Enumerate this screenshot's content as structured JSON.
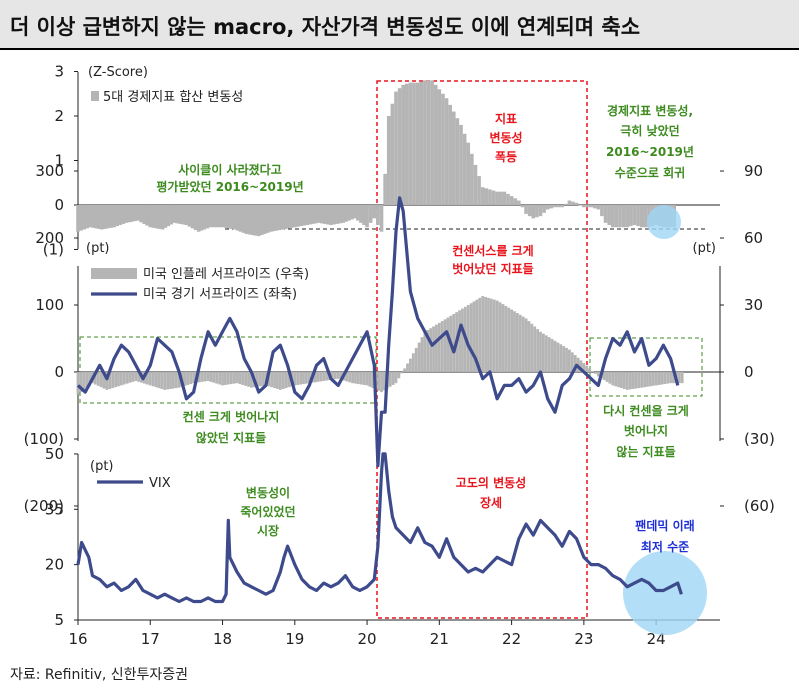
{
  "title": "더 이상 급변하지 않는 macro, 자산가격 변동성도 이에 연계되며 축소",
  "source": "자료: Refinitiv, 신한투자증권",
  "colors": {
    "navy": "#3d4a8c",
    "gray": "#b5b5b5",
    "red": "#e8141c",
    "green": "#3d8b1f",
    "blue": "#1f2fd6",
    "highlight": "#9fd6f5"
  },
  "chart_data": [
    {
      "type": "bar",
      "name": "macro-index",
      "ylabel": "(Z-Score)",
      "ylim": [
        -1,
        3
      ],
      "yticks": [
        "3",
        "2",
        "1",
        "0",
        "(1)"
      ],
      "legend": "5대 경제지표 합산 변동성",
      "annotations": [
        "사이클이 사라졌다고",
        "평가받았던 2016~2019년",
        "지표",
        "변동성",
        "폭등",
        "경제지표 변동성,",
        "극히 낮았던",
        "2016~2019년",
        "수준으로 회귀"
      ],
      "series": [
        {
          "name": "5대 경제지표 합산 변동성",
          "x": [
            2016.0,
            2016.17,
            2016.33,
            2016.5,
            2016.67,
            2016.83,
            2017.0,
            2017.17,
            2017.33,
            2017.5,
            2017.67,
            2017.83,
            2018.0,
            2018.17,
            2018.33,
            2018.5,
            2018.67,
            2018.83,
            2019.0,
            2019.17,
            2019.33,
            2019.5,
            2019.67,
            2019.83,
            2020.0,
            2020.1,
            2020.2,
            2020.3,
            2020.4,
            2020.5,
            2020.6,
            2020.7,
            2020.8,
            2020.9,
            2021.0,
            2021.1,
            2021.2,
            2021.3,
            2021.4,
            2021.5,
            2021.6,
            2021.7,
            2021.8,
            2021.9,
            2022.0,
            2022.1,
            2022.2,
            2022.3,
            2022.4,
            2022.5,
            2022.6,
            2022.7,
            2022.8,
            2022.9,
            2023.0,
            2023.1,
            2023.2,
            2023.3,
            2023.4,
            2023.5,
            2023.6,
            2023.7,
            2023.8,
            2023.9,
            2024.0,
            2024.1,
            2024.2
          ],
          "y": [
            -0.6,
            -0.5,
            -0.55,
            -0.5,
            -0.4,
            -0.35,
            -0.5,
            -0.55,
            -0.4,
            -0.45,
            -0.6,
            -0.5,
            -0.5,
            -0.55,
            -0.65,
            -0.7,
            -0.6,
            -0.55,
            -0.5,
            -0.45,
            -0.4,
            -0.45,
            -0.4,
            -0.3,
            -0.5,
            -0.3,
            -0.6,
            2.0,
            2.55,
            2.7,
            2.75,
            2.75,
            2.8,
            2.8,
            2.6,
            2.4,
            2.1,
            1.8,
            1.4,
            0.9,
            0.4,
            0.35,
            0.3,
            0.3,
            0.2,
            0.1,
            -0.2,
            -0.3,
            -0.25,
            -0.1,
            -0.05,
            -0.05,
            0.1,
            0.05,
            -0.05,
            -0.05,
            -0.1,
            -0.4,
            -0.5,
            -0.5,
            -0.5,
            -0.45,
            -0.5,
            -0.5,
            -0.45,
            -0.5,
            -0.5
          ]
        }
      ]
    },
    {
      "type": "line",
      "name": "surprise-index",
      "ylabel_left": "(pt)",
      "ylabel_right": "(pt)",
      "ylim_left": [
        -200,
        300
      ],
      "ylim_right": [
        -60,
        90
      ],
      "yticks_left": [
        "300",
        "200",
        "100",
        "0",
        "(100)",
        "(200)"
      ],
      "yticks_right": [
        "90",
        "60",
        "30",
        "0",
        "(30)",
        "(60)"
      ],
      "legend": [
        "미국 인플레 서프라이즈 (우축)",
        "미국 경기 서프라이즈 (좌축)"
      ],
      "annotations": [
        "컨센서스를 크게",
        "벗어났던 지표들",
        "컨센 크게 벗어나지",
        "않았던 지표들",
        "다시 컨센을 크게",
        "벗어나지",
        "않는 지표들"
      ],
      "series": [
        {
          "name": "미국 인플레 서프라이즈 (우축)",
          "x": [
            2016.0,
            2016.2,
            2016.4,
            2016.6,
            2016.8,
            2017.0,
            2017.2,
            2017.4,
            2017.6,
            2017.8,
            2018.0,
            2018.2,
            2018.4,
            2018.6,
            2018.8,
            2019.0,
            2019.2,
            2019.4,
            2019.6,
            2019.8,
            2020.0,
            2020.2,
            2020.4,
            2020.6,
            2020.8,
            2021.0,
            2021.2,
            2021.4,
            2021.6,
            2021.8,
            2022.0,
            2022.2,
            2022.4,
            2022.6,
            2022.8,
            2023.0,
            2023.2,
            2023.4,
            2023.6,
            2023.8,
            2024.0,
            2024.2
          ],
          "y": [
            -10,
            -5,
            -8,
            -6,
            -4,
            -6,
            -8,
            -7,
            -5,
            -4,
            -6,
            -5,
            -7,
            -6,
            -8,
            -6,
            -5,
            -4,
            -3,
            -5,
            -6,
            -9,
            -5,
            6,
            18,
            22,
            26,
            30,
            34,
            32,
            28,
            24,
            18,
            14,
            10,
            4,
            -2,
            -6,
            -8,
            -7,
            -6,
            -5
          ]
        },
        {
          "name": "미국 경기 서프라이즈 (좌축)",
          "x": [
            2016.0,
            2016.1,
            2016.2,
            2016.3,
            2016.4,
            2016.5,
            2016.6,
            2016.7,
            2016.8,
            2016.9,
            2017.0,
            2017.1,
            2017.2,
            2017.3,
            2017.4,
            2017.5,
            2017.6,
            2017.7,
            2017.8,
            2017.9,
            2018.0,
            2018.1,
            2018.2,
            2018.3,
            2018.4,
            2018.5,
            2018.6,
            2018.7,
            2018.8,
            2018.9,
            2019.0,
            2019.1,
            2019.2,
            2019.3,
            2019.4,
            2019.5,
            2019.6,
            2019.7,
            2019.8,
            2019.9,
            2020.0,
            2020.1,
            2020.15,
            2020.2,
            2020.25,
            2020.3,
            2020.35,
            2020.4,
            2020.45,
            2020.5,
            2020.55,
            2020.6,
            2020.7,
            2020.8,
            2020.9,
            2021.0,
            2021.1,
            2021.2,
            2021.3,
            2021.4,
            2021.5,
            2021.6,
            2021.7,
            2021.8,
            2021.9,
            2022.0,
            2022.1,
            2022.2,
            2022.3,
            2022.4,
            2022.5,
            2022.6,
            2022.7,
            2022.8,
            2022.9,
            2023.0,
            2023.1,
            2023.2,
            2023.3,
            2023.4,
            2023.5,
            2023.6,
            2023.7,
            2023.8,
            2023.9,
            2024.0,
            2024.1,
            2024.2,
            2024.3
          ],
          "y": [
            -20,
            -30,
            -10,
            10,
            -10,
            20,
            40,
            30,
            10,
            -10,
            10,
            50,
            40,
            30,
            0,
            -40,
            -30,
            20,
            60,
            40,
            60,
            80,
            60,
            20,
            0,
            -30,
            -20,
            30,
            40,
            10,
            -30,
            -40,
            -20,
            10,
            20,
            -10,
            -20,
            0,
            20,
            40,
            60,
            10,
            -140,
            -60,
            -60,
            40,
            120,
            210,
            260,
            240,
            180,
            120,
            80,
            60,
            40,
            50,
            60,
            30,
            70,
            40,
            20,
            -10,
            0,
            -40,
            -20,
            -20,
            -10,
            -30,
            -20,
            0,
            -40,
            -60,
            -20,
            -10,
            10,
            0,
            -10,
            -20,
            20,
            50,
            40,
            60,
            30,
            50,
            10,
            20,
            40,
            20,
            -20
          ]
        }
      ]
    },
    {
      "type": "line",
      "name": "vix",
      "ylabel": "(pt)",
      "ylim": [
        5,
        50
      ],
      "yticks": [
        "50",
        "35",
        "20",
        "5"
      ],
      "xticks": [
        "16",
        "17",
        "18",
        "19",
        "20",
        "21",
        "22",
        "23",
        "24"
      ],
      "legend": "VIX",
      "annotations": [
        "변동성이",
        "죽어있었던",
        "시장",
        "고도의 변동성",
        "장세",
        "팬데믹 이래",
        "최저 수준"
      ],
      "series": [
        {
          "name": "VIX",
          "x": [
            2016.0,
            2016.05,
            2016.1,
            2016.15,
            2016.2,
            2016.3,
            2016.4,
            2016.5,
            2016.6,
            2016.7,
            2016.8,
            2016.9,
            2017.0,
            2017.1,
            2017.2,
            2017.3,
            2017.4,
            2017.5,
            2017.6,
            2017.7,
            2017.8,
            2017.9,
            2018.0,
            2018.05,
            2018.08,
            2018.1,
            2018.2,
            2018.3,
            2018.4,
            2018.5,
            2018.6,
            2018.7,
            2018.8,
            2018.85,
            2018.9,
            2019.0,
            2019.1,
            2019.2,
            2019.3,
            2019.4,
            2019.5,
            2019.6,
            2019.7,
            2019.8,
            2019.9,
            2020.0,
            2020.1,
            2020.15,
            2020.2,
            2020.22,
            2020.25,
            2020.3,
            2020.35,
            2020.4,
            2020.5,
            2020.6,
            2020.7,
            2020.8,
            2020.9,
            2021.0,
            2021.1,
            2021.2,
            2021.3,
            2021.4,
            2021.5,
            2021.6,
            2021.7,
            2021.8,
            2021.9,
            2022.0,
            2022.1,
            2022.2,
            2022.3,
            2022.4,
            2022.5,
            2022.6,
            2022.7,
            2022.8,
            2022.9,
            2023.0,
            2023.1,
            2023.2,
            2023.3,
            2023.4,
            2023.5,
            2023.6,
            2023.7,
            2023.8,
            2023.9,
            2024.0,
            2024.1,
            2024.2,
            2024.3,
            2024.35
          ],
          "y": [
            20,
            26,
            24,
            22,
            17,
            16,
            14,
            15,
            13,
            14,
            16,
            13,
            12,
            11,
            12,
            11,
            10,
            11,
            10,
            10,
            11,
            10,
            10,
            12,
            32,
            22,
            18,
            15,
            14,
            13,
            12,
            13,
            18,
            22,
            25,
            20,
            16,
            14,
            13,
            15,
            14,
            15,
            17,
            14,
            13,
            14,
            16,
            25,
            45,
            65,
            50,
            40,
            33,
            30,
            28,
            26,
            30,
            26,
            25,
            22,
            27,
            22,
            20,
            18,
            19,
            18,
            20,
            22,
            21,
            20,
            27,
            31,
            28,
            32,
            30,
            28,
            25,
            29,
            27,
            22,
            20,
            20,
            19,
            17,
            16,
            14,
            15,
            16,
            15,
            13,
            13,
            14,
            15,
            12
          ]
        }
      ]
    }
  ]
}
